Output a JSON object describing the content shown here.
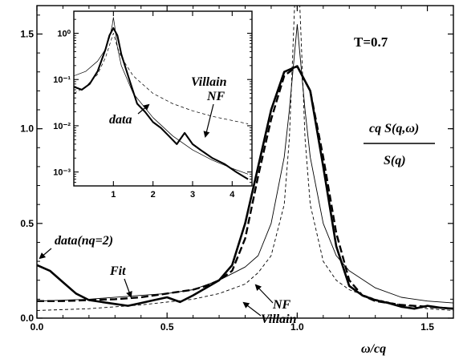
{
  "chart_data": [
    {
      "type": "line",
      "panel": "main",
      "annotation": "T=0.7",
      "ylabel_numerator": "cq S(q,ω)",
      "ylabel_denominator": "S(q)",
      "xlabel": "ω/cq",
      "xlim": [
        0.0,
        1.6
      ],
      "ylim": [
        0.0,
        1.65
      ],
      "xticks": [
        "0.0",
        "0.5",
        "1.0",
        "1.5"
      ],
      "yticks": [
        "0.0",
        "0.5",
        "1.0",
        "1.5"
      ],
      "series": [
        {
          "name": "data(nq=2)",
          "style": "thick-solid",
          "x": [
            0.0,
            0.05,
            0.1,
            0.15,
            0.2,
            0.25,
            0.3,
            0.35,
            0.4,
            0.45,
            0.5,
            0.55,
            0.6,
            0.65,
            0.7,
            0.75,
            0.8,
            0.85,
            0.9,
            0.95,
            1.0,
            1.05,
            1.1,
            1.15,
            1.2,
            1.25,
            1.3,
            1.35,
            1.4,
            1.45,
            1.5,
            1.55,
            1.6
          ],
          "y": [
            0.28,
            0.25,
            0.19,
            0.13,
            0.095,
            0.085,
            0.075,
            0.065,
            0.08,
            0.095,
            0.11,
            0.085,
            0.12,
            0.16,
            0.2,
            0.28,
            0.5,
            0.8,
            1.1,
            1.3,
            1.33,
            1.2,
            0.8,
            0.38,
            0.17,
            0.12,
            0.095,
            0.08,
            0.06,
            0.05,
            0.065,
            0.055,
            0.05
          ]
        },
        {
          "name": "Fit",
          "style": "thick-dashed",
          "x": [
            0.0,
            0.1,
            0.2,
            0.3,
            0.4,
            0.5,
            0.6,
            0.65,
            0.7,
            0.75,
            0.8,
            0.85,
            0.9,
            0.95,
            1.0,
            1.05,
            1.1,
            1.15,
            1.2,
            1.25,
            1.3,
            1.4,
            1.5,
            1.6
          ],
          "y": [
            0.09,
            0.09,
            0.095,
            0.1,
            0.11,
            0.13,
            0.15,
            0.17,
            0.2,
            0.25,
            0.42,
            0.75,
            1.05,
            1.28,
            1.33,
            1.2,
            0.85,
            0.45,
            0.2,
            0.12,
            0.09,
            0.07,
            0.06,
            0.05
          ]
        },
        {
          "name": "NF",
          "style": "thin-solid",
          "x": [
            0.0,
            0.2,
            0.4,
            0.5,
            0.6,
            0.7,
            0.8,
            0.85,
            0.9,
            0.95,
            0.97,
            0.99,
            1.0,
            1.01,
            1.03,
            1.05,
            1.1,
            1.15,
            1.2,
            1.3,
            1.4,
            1.5,
            1.6
          ],
          "y": [
            0.09,
            0.1,
            0.12,
            0.13,
            0.15,
            0.2,
            0.27,
            0.33,
            0.5,
            0.85,
            1.1,
            1.4,
            1.55,
            1.4,
            1.1,
            0.85,
            0.5,
            0.33,
            0.25,
            0.16,
            0.11,
            0.09,
            0.08
          ]
        },
        {
          "name": "Villain",
          "style": "thin-dashed",
          "x": [
            0.0,
            0.2,
            0.4,
            0.6,
            0.7,
            0.8,
            0.85,
            0.9,
            0.95,
            0.97,
            0.98,
            0.99,
            0.995,
            1.005,
            1.01,
            1.02,
            1.03,
            1.05,
            1.1,
            1.15,
            1.2,
            1.3,
            1.4,
            1.5,
            1.6
          ],
          "y": [
            0.04,
            0.05,
            0.07,
            0.1,
            0.13,
            0.18,
            0.24,
            0.33,
            0.6,
            0.95,
            1.3,
            1.65,
            1.7,
            1.7,
            1.65,
            1.3,
            0.95,
            0.6,
            0.3,
            0.2,
            0.15,
            0.1,
            0.07,
            0.05,
            0.04
          ]
        }
      ],
      "labels": [
        "data(nq=2)",
        "Fit",
        "NF",
        "Villain"
      ]
    },
    {
      "type": "line",
      "panel": "inset",
      "yscale": "log",
      "xlim": [
        0.0,
        4.5
      ],
      "ylim": [
        0.0005,
        3
      ],
      "xticks": [
        "1",
        "2",
        "3",
        "4"
      ],
      "yticks": [
        "10⁰",
        "10⁻¹",
        "10⁻²",
        "10⁻³"
      ],
      "series": [
        {
          "name": "data",
          "style": "thick-solid",
          "x": [
            0.0,
            0.2,
            0.4,
            0.6,
            0.8,
            0.9,
            1.0,
            1.1,
            1.2,
            1.4,
            1.6,
            1.8,
            2.0,
            2.2,
            2.4,
            2.6,
            2.8,
            3.0,
            3.2,
            3.5,
            3.8,
            4.1,
            4.4
          ],
          "y": [
            0.07,
            0.06,
            0.08,
            0.15,
            0.45,
            0.9,
            1.3,
            0.9,
            0.35,
            0.1,
            0.03,
            0.02,
            0.012,
            0.009,
            0.006,
            0.004,
            0.007,
            0.004,
            0.003,
            0.002,
            0.0015,
            0.001,
            0.0007
          ]
        },
        {
          "name": "NF",
          "style": "thin-solid",
          "x": [
            0.0,
            0.3,
            0.6,
            0.8,
            0.9,
            0.97,
            1.0,
            1.03,
            1.1,
            1.2,
            1.5,
            2.0,
            2.5,
            3.0,
            3.5,
            4.0,
            4.4
          ],
          "y": [
            0.12,
            0.15,
            0.25,
            0.45,
            0.8,
            1.5,
            2.2,
            1.5,
            0.5,
            0.2,
            0.05,
            0.015,
            0.006,
            0.003,
            0.0018,
            0.0012,
            0.0009
          ]
        },
        {
          "name": "Villain",
          "style": "thin-dashed",
          "x": [
            0.0,
            0.3,
            0.6,
            0.8,
            0.9,
            1.0,
            1.1,
            1.2,
            1.5,
            2.0,
            2.5,
            3.0,
            3.5,
            4.0,
            4.4
          ],
          "y": [
            0.05,
            0.07,
            0.13,
            0.3,
            0.55,
            1.0,
            0.5,
            0.3,
            0.12,
            0.05,
            0.03,
            0.021,
            0.016,
            0.013,
            0.011
          ]
        }
      ],
      "labels": [
        "Villain",
        "NF",
        "data"
      ]
    }
  ]
}
